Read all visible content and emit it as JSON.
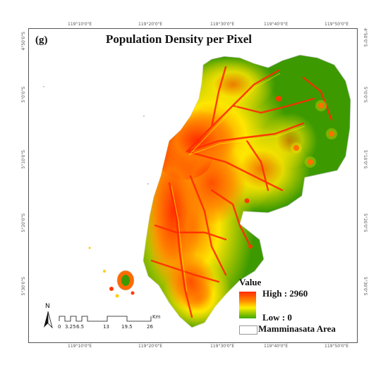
{
  "panel_label": "(g)",
  "title": "Population Density per Pixel",
  "top_ticks": [
    "119°10'0\"E",
    "119°20'0\"E",
    "119°30'0\"E",
    "119°40'0\"E",
    "119°50'0\"E"
  ],
  "bottom_ticks": [
    "119°10'0\"E",
    "119°20'0\"E",
    "119°30'0\"E",
    "119°40'0\"E",
    "119°50'0\"E"
  ],
  "left_ticks": [
    "4°50'0\"S",
    "5°0'0\"S",
    "5°10'0\"S",
    "5°20'0\"S",
    "5°30'0\"S"
  ],
  "right_ticks": [
    "4°50'0\"S",
    "5°0'0\"S",
    "5°10'0\"S",
    "5°20'0\"S",
    "5°30'0\"S"
  ],
  "legend": {
    "title": "Value",
    "high": "High : 2960",
    "low": "Low : 0",
    "area": "Mamminasata Area",
    "ramp_colors": [
      "#ff2a00",
      "#ff8c00",
      "#ffee00",
      "#3fa800"
    ]
  },
  "scale_bar": {
    "labels": [
      "0",
      "3.25",
      "6.5",
      "13",
      "19.5",
      "26"
    ],
    "unit": "Km"
  },
  "north_arrow": {
    "label": "N",
    "icon": "north-arrow-icon"
  },
  "colors": {
    "high_density": "#ff2a00",
    "mid_density": "#ffd000",
    "low_density": "#3c9a00"
  }
}
